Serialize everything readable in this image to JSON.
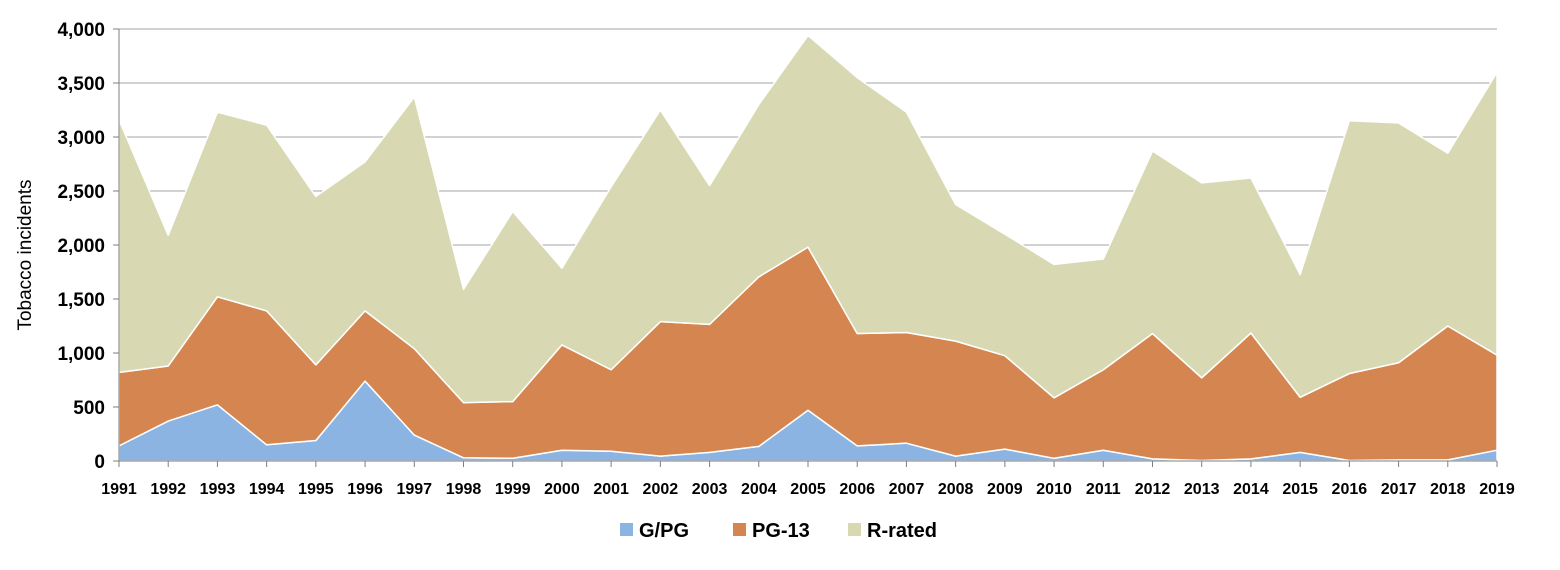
{
  "chart_data": {
    "type": "area",
    "stacked": true,
    "ylabel": "Tobacco incidents",
    "ylim": [
      0,
      4000
    ],
    "yticks": [
      0,
      500,
      1000,
      1500,
      2000,
      2500,
      3000,
      3500,
      4000
    ],
    "ytick_labels": [
      "0",
      "500",
      "1,000",
      "1,500",
      "2,000",
      "2,500",
      "3,000",
      "3,500",
      "4,000"
    ],
    "grid": true,
    "legend_position": "bottom",
    "categories": [
      "1991",
      "1992",
      "1993",
      "1994",
      "1995",
      "1996",
      "1997",
      "1998",
      "1999",
      "2000",
      "2001",
      "2002",
      "2003",
      "2004",
      "2005",
      "2006",
      "2007",
      "2008",
      "2009",
      "2010",
      "2011",
      "2012",
      "2013",
      "2014",
      "2015",
      "2016",
      "2017",
      "2018",
      "2019"
    ],
    "series": [
      {
        "name": "G/PG",
        "color": "#8cb4e2",
        "values": [
          140,
          370,
          520,
          150,
          190,
          740,
          240,
          30,
          25,
          100,
          90,
          45,
          80,
          135,
          470,
          140,
          165,
          45,
          110,
          25,
          100,
          20,
          5,
          20,
          80,
          5,
          10,
          10,
          100
        ]
      },
      {
        "name": "PG-13",
        "color": "#d5854f",
        "values": [
          680,
          510,
          1000,
          1240,
          700,
          650,
          800,
          510,
          525,
          975,
          755,
          1245,
          1185,
          1570,
          1510,
          1040,
          1025,
          1065,
          865,
          560,
          745,
          1160,
          765,
          1165,
          510,
          805,
          900,
          1240,
          880
        ]
      },
      {
        "name": "R-rated",
        "color": "#d8d9b3",
        "values": [
          2340,
          1210,
          1710,
          1720,
          1560,
          1380,
          2330,
          1050,
          1760,
          710,
          1695,
          1960,
          1285,
          1595,
          1960,
          2370,
          2040,
          1265,
          1125,
          1235,
          1025,
          1690,
          1805,
          1435,
          1135,
          2340,
          2220,
          1600,
          2620
        ]
      }
    ]
  }
}
